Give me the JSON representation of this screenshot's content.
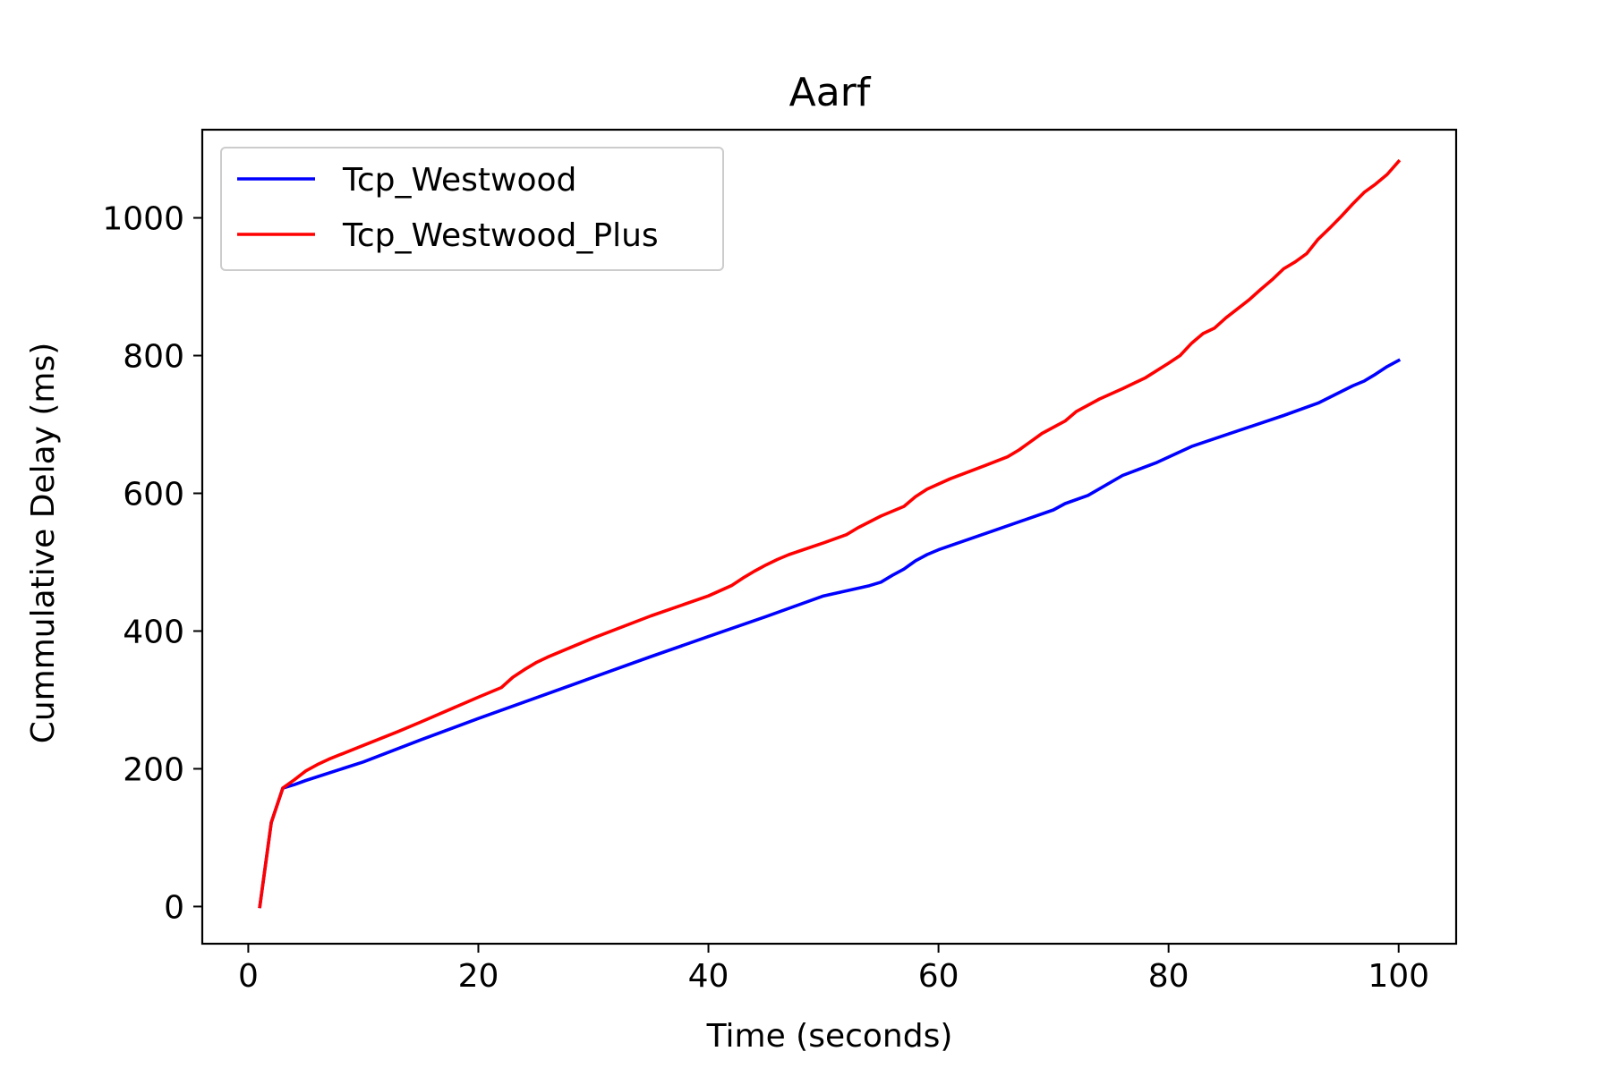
{
  "chart_data": {
    "type": "line",
    "title": "Aarf",
    "xlabel": "Time (seconds)",
    "ylabel": "Cummulative Delay (ms)",
    "xlim": [
      -4,
      105
    ],
    "ylim": [
      -54,
      1128
    ],
    "xticks": [
      0,
      20,
      40,
      60,
      80,
      100
    ],
    "yticks": [
      0,
      200,
      400,
      600,
      800,
      1000
    ],
    "xtick_labels": [
      "0",
      "20",
      "40",
      "60",
      "80",
      "100"
    ],
    "ytick_labels": [
      "0",
      "200",
      "400",
      "600",
      "800",
      "1000"
    ],
    "grid": false,
    "legend_position": "upper-left",
    "series": [
      {
        "name": "Tcp_Westwood",
        "color": "#0000ff",
        "x": [
          1,
          2,
          3,
          4,
          5,
          10,
          15,
          20,
          25,
          30,
          35,
          40,
          45,
          50,
          54,
          55,
          56,
          57,
          58,
          59,
          60,
          65,
          70,
          71,
          73,
          76,
          79,
          82,
          85,
          90,
          93,
          96,
          97,
          98,
          99,
          100
        ],
        "y": [
          0,
          122,
          172,
          177,
          183,
          210,
          242,
          273,
          303,
          333,
          363,
          392,
          421,
          451,
          466,
          471,
          481,
          490,
          502,
          511,
          518,
          547,
          576,
          585,
          597,
          626,
          645,
          668,
          685,
          713,
          731,
          756,
          763,
          773,
          784,
          793
        ]
      },
      {
        "name": "Tcp_Westwood_Plus",
        "color": "#ff0000",
        "x": [
          1,
          2,
          3,
          4,
          5,
          6,
          7,
          10,
          13,
          15,
          20,
          22,
          23,
          24,
          25,
          26,
          27,
          30,
          35,
          40,
          42,
          43,
          44,
          45,
          46,
          47,
          50,
          52,
          53,
          55,
          57,
          58,
          59,
          61,
          64,
          66,
          67,
          68,
          69,
          71,
          72,
          74,
          76,
          78,
          80,
          81,
          82,
          83,
          84,
          85,
          86,
          87,
          88,
          89,
          90,
          91,
          92,
          93,
          94,
          95,
          96,
          97,
          98,
          99,
          100
        ],
        "y": [
          0,
          122,
          172,
          184,
          197,
          206,
          214,
          234,
          254,
          268,
          304,
          318,
          333,
          344,
          354,
          362,
          369,
          390,
          422,
          451,
          466,
          477,
          487,
          496,
          504,
          511,
          528,
          540,
          550,
          567,
          581,
          595,
          606,
          621,
          640,
          653,
          663,
          675,
          687,
          705,
          719,
          737,
          752,
          768,
          789,
          800,
          818,
          832,
          840,
          855,
          868,
          881,
          896,
          910,
          926,
          936,
          948,
          969,
          985,
          1002,
          1020,
          1037,
          1049,
          1063,
          1082
        ]
      }
    ]
  }
}
